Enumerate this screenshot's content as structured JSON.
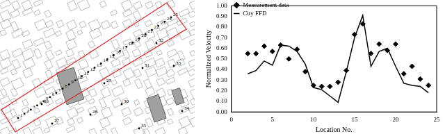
{
  "map": {
    "labels": [
      "1",
      "2",
      "3",
      "4",
      "5",
      "6",
      "7",
      "8",
      "9",
      "10",
      "11",
      "12",
      "13",
      "14",
      "15",
      "16",
      "17",
      "18",
      "19",
      "20",
      "21",
      "22",
      "23",
      "24",
      "25",
      "26",
      "27",
      "28",
      "29",
      "30",
      "31",
      "32",
      "33",
      "34",
      "35"
    ]
  },
  "chart_data": {
    "type": "scatter",
    "x_label": "Location No.",
    "y_label": "Normalized Velocity",
    "x": [
      2,
      3,
      4,
      5,
      6,
      7,
      8,
      9,
      10,
      11,
      12,
      13,
      14,
      15,
      16,
      17,
      18,
      19,
      20,
      21,
      22,
      23,
      24
    ],
    "series": [
      {
        "name": "Measurement data",
        "color": "#000000",
        "type": "scatter",
        "marker": "diamond",
        "values": [
          0.55,
          0.55,
          0.62,
          0.57,
          0.63,
          0.5,
          0.59,
          0.38,
          0.25,
          0.24,
          0.24,
          0.28,
          0.39,
          0.73,
          0.83,
          0.55,
          0.64,
          0.58,
          0.64,
          0.36,
          0.43,
          0.31,
          0.25
        ]
      },
      {
        "name": "City FFD",
        "color": "#000000",
        "type": "line",
        "line_style": "solid",
        "values": [
          0.36,
          0.39,
          0.48,
          0.44,
          0.63,
          0.62,
          0.57,
          0.45,
          0.23,
          0.21,
          0.15,
          0.09,
          0.38,
          0.7,
          0.91,
          0.43,
          0.57,
          0.6,
          0.43,
          0.27,
          0.25,
          0.24,
          0.18
        ]
      }
    ],
    "xlim": [
      0,
      25
    ],
    "xticks": [
      0,
      5,
      10,
      15,
      20,
      25
    ],
    "ylim": [
      0,
      1
    ],
    "yticks": [
      {
        "value": 0,
        "label": "0.00"
      },
      {
        "value": 0.1,
        "label": "0.10"
      },
      {
        "value": 0.2,
        "label": "0.20"
      },
      {
        "value": 0.3,
        "label": "0.30"
      },
      {
        "value": 0.4,
        "label": "0.40"
      },
      {
        "value": 0.5,
        "label": "0.50"
      },
      {
        "value": 0.6,
        "label": "0.60"
      },
      {
        "value": 0.7,
        "label": "0.70"
      },
      {
        "value": 0.8,
        "label": "0.80"
      },
      {
        "value": 0.9,
        "label": "0.90"
      },
      {
        "value": 1,
        "label": "1.00"
      }
    ],
    "grid": false,
    "legend": "top-left"
  }
}
